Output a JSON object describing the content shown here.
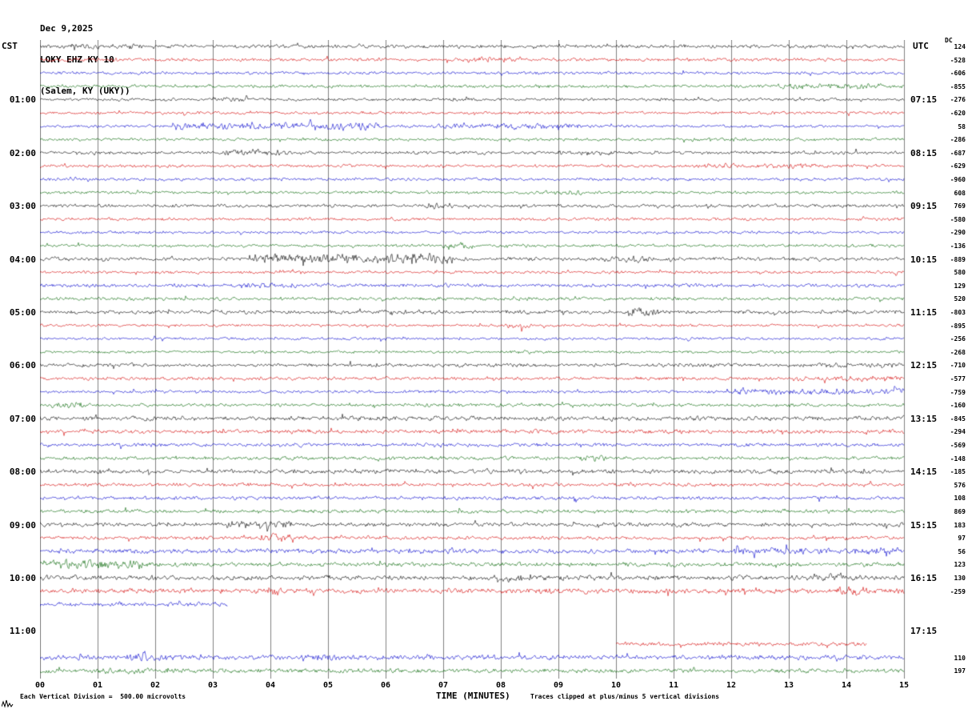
{
  "header": {
    "date": "Dec 9,2025",
    "station": "LOKY EHZ KY 10",
    "location": "(Salem, KY (UKY))"
  },
  "axes": {
    "left_tz": "CST",
    "right_tz": "UTC",
    "dc_header": "DC",
    "left_labels": [
      "01:00",
      "02:00",
      "03:00",
      "04:00",
      "05:00",
      "06:00",
      "07:00",
      "08:00",
      "09:00",
      "10:00",
      "11:00"
    ],
    "right_labels": [
      "07:15",
      "08:15",
      "09:15",
      "10:15",
      "11:15",
      "12:15",
      "13:15",
      "14:15",
      "15:15",
      "16:15",
      "17:15"
    ],
    "minute_labels": [
      "00",
      "01",
      "02",
      "03",
      "04",
      "05",
      "06",
      "07",
      "08",
      "09",
      "10",
      "11",
      "12",
      "13",
      "14",
      "15"
    ],
    "xlabel": "TIME (MINUTES)"
  },
  "footer": {
    "left": "Each Vertical Division =  500.00 microvolts",
    "right": "Traces clipped at plus/minus 5 vertical divisions"
  },
  "chart_data": {
    "type": "line",
    "title": "LOKY EHZ KY 10 helicorder, Dec 9,2025, Salem KY (UKY)",
    "xlabel": "TIME (MINUTES)",
    "x_range": [
      0,
      15
    ],
    "row_duration_minutes": 15,
    "vertical_division_microvolts": 500,
    "clip_divisions": 5,
    "grid": true,
    "trace_colors": [
      "#000000",
      "#d40000",
      "#0000cd",
      "#006400"
    ],
    "rows": [
      {
        "t": "00:00",
        "dc": 124,
        "amp": 1.2,
        "ev": [
          [
            0.5,
            2.0,
            1.5
          ]
        ]
      },
      {
        "t": "00:15",
        "dc": -528,
        "amp": 1.1,
        "ev": [
          [
            7.4,
            8.2,
            1.7
          ]
        ]
      },
      {
        "t": "00:30",
        "dc": -606,
        "amp": 1.0,
        "ev": []
      },
      {
        "t": "00:45",
        "dc": -855,
        "amp": 1.1,
        "ev": [
          [
            12.8,
            14.6,
            1.7
          ]
        ]
      },
      {
        "t": "01:00",
        "dc": -276,
        "amp": 1.0,
        "ev": [
          [
            3.0,
            3.6,
            1.8
          ]
        ]
      },
      {
        "t": "01:15",
        "dc": -620,
        "amp": 1.0,
        "ev": []
      },
      {
        "t": "01:30",
        "dc": 58,
        "amp": 1.0,
        "ev": [
          [
            2.3,
            5.9,
            2.8
          ],
          [
            6.8,
            9.5,
            1.8
          ]
        ]
      },
      {
        "t": "01:45",
        "dc": -286,
        "amp": 1.0,
        "ev": []
      },
      {
        "t": "02:00",
        "dc": -687,
        "amp": 1.1,
        "ev": [
          [
            3.2,
            4.3,
            2.0
          ],
          [
            9.0,
            10.0,
            1.5
          ]
        ]
      },
      {
        "t": "02:15",
        "dc": -629,
        "amp": 1.0,
        "ev": [
          [
            11.5,
            13.5,
            1.6
          ]
        ]
      },
      {
        "t": "02:30",
        "dc": -960,
        "amp": 1.0,
        "ev": []
      },
      {
        "t": "02:45",
        "dc": 608,
        "amp": 1.0,
        "ev": [
          [
            8.6,
            9.4,
            1.8
          ]
        ]
      },
      {
        "t": "03:00",
        "dc": 769,
        "amp": 1.1,
        "ev": [
          [
            6.7,
            7.2,
            2.0
          ]
        ]
      },
      {
        "t": "03:15",
        "dc": -580,
        "amp": 1.0,
        "ev": []
      },
      {
        "t": "03:30",
        "dc": -290,
        "amp": 1.0,
        "ev": []
      },
      {
        "t": "03:45",
        "dc": -136,
        "amp": 1.0,
        "ev": [
          [
            7.0,
            7.5,
            1.8
          ]
        ]
      },
      {
        "t": "04:00",
        "dc": -889,
        "amp": 1.2,
        "ev": [
          [
            3.6,
            7.2,
            2.8
          ],
          [
            9.8,
            10.6,
            1.8
          ]
        ]
      },
      {
        "t": "04:15",
        "dc": 580,
        "amp": 1.0,
        "ev": [
          [
            3.8,
            4.6,
            1.5
          ]
        ]
      },
      {
        "t": "04:30",
        "dc": 129,
        "amp": 1.2,
        "ev": [
          [
            3.5,
            4.5,
            1.6
          ]
        ]
      },
      {
        "t": "04:45",
        "dc": 520,
        "amp": 1.1,
        "ev": []
      },
      {
        "t": "05:00",
        "dc": -803,
        "amp": 1.3,
        "ev": [
          [
            10.2,
            10.8,
            2.2
          ]
        ]
      },
      {
        "t": "05:15",
        "dc": -895,
        "amp": 0.9,
        "ev": [
          [
            8.1,
            8.5,
            2.5
          ]
        ]
      },
      {
        "t": "05:30",
        "dc": -256,
        "amp": 0.9,
        "ev": []
      },
      {
        "t": "05:45",
        "dc": -268,
        "amp": 0.9,
        "ev": [
          [
            8.0,
            8.6,
            1.5
          ]
        ]
      },
      {
        "t": "06:00",
        "dc": -710,
        "amp": 1.2,
        "ev": [
          [
            13.5,
            15,
            1.5
          ]
        ]
      },
      {
        "t": "06:15",
        "dc": -577,
        "amp": 1.1,
        "ev": [
          [
            13.0,
            15,
            1.6
          ]
        ]
      },
      {
        "t": "06:30",
        "dc": -759,
        "amp": 1.0,
        "ev": [
          [
            11.9,
            15,
            2.2
          ]
        ]
      },
      {
        "t": "06:45",
        "dc": -160,
        "amp": 1.1,
        "ev": [
          [
            0.2,
            0.8,
            2.0
          ]
        ]
      },
      {
        "t": "07:00",
        "dc": -845,
        "amp": 1.5,
        "ev": []
      },
      {
        "t": "07:15",
        "dc": -294,
        "amp": 1.4,
        "ev": []
      },
      {
        "t": "07:30",
        "dc": -569,
        "amp": 1.2,
        "ev": []
      },
      {
        "t": "07:45",
        "dc": -148,
        "amp": 1.2,
        "ev": [
          [
            9.4,
            9.8,
            2.0
          ]
        ]
      },
      {
        "t": "08:00",
        "dc": -185,
        "amp": 1.4,
        "ev": []
      },
      {
        "t": "08:15",
        "dc": 576,
        "amp": 1.2,
        "ev": []
      },
      {
        "t": "08:30",
        "dc": 108,
        "amp": 1.2,
        "ev": []
      },
      {
        "t": "08:45",
        "dc": 869,
        "amp": 1.2,
        "ev": []
      },
      {
        "t": "09:00",
        "dc": 183,
        "amp": 1.3,
        "ev": [
          [
            3.2,
            4.4,
            1.8
          ]
        ]
      },
      {
        "t": "09:15",
        "dc": 97,
        "amp": 1.2,
        "ev": [
          [
            3.8,
            4.4,
            2.4
          ]
        ]
      },
      {
        "t": "09:30",
        "dc": 56,
        "amp": 1.6,
        "ev": [
          [
            12.0,
            15,
            1.5
          ]
        ]
      },
      {
        "t": "09:45",
        "dc": 123,
        "amp": 1.4,
        "ev": [
          [
            0.0,
            1.8,
            2.2
          ]
        ]
      },
      {
        "t": "10:00",
        "dc": 130,
        "amp": 1.6,
        "ev": [
          [
            7.8,
            8.4,
            1.8
          ],
          [
            13.4,
            14.2,
            1.8
          ]
        ]
      },
      {
        "t": "10:15",
        "dc": -259,
        "amp": 1.7,
        "ev": [
          [
            3.7,
            4.2,
            1.8
          ],
          [
            13.8,
            14.4,
            1.8
          ]
        ]
      },
      {
        "t": "10:30",
        "dc": null,
        "amp": 1.4,
        "seg": [
          [
            0,
            3.25
          ]
        ],
        "ev": []
      },
      {
        "t": "10:45",
        "dc": null,
        "amp": 1.0,
        "seg": [],
        "ev": []
      },
      {
        "t": "11:00",
        "dc": null,
        "amp": 1.0,
        "seg": [],
        "ev": []
      },
      {
        "t": "11:15",
        "dc": null,
        "amp": 1.3,
        "seg": [
          [
            10.0,
            14.35
          ]
        ],
        "ev": []
      },
      {
        "t": "11:30",
        "dc": 110,
        "amp": 1.6,
        "ev": [
          [
            1.5,
            2.2,
            1.7
          ],
          [
            4.5,
            5.2,
            1.5
          ]
        ]
      },
      {
        "t": "11:45",
        "dc": 197,
        "amp": 1.4,
        "ev": [
          [
            1.0,
            2.0,
            1.6
          ]
        ]
      }
    ]
  }
}
